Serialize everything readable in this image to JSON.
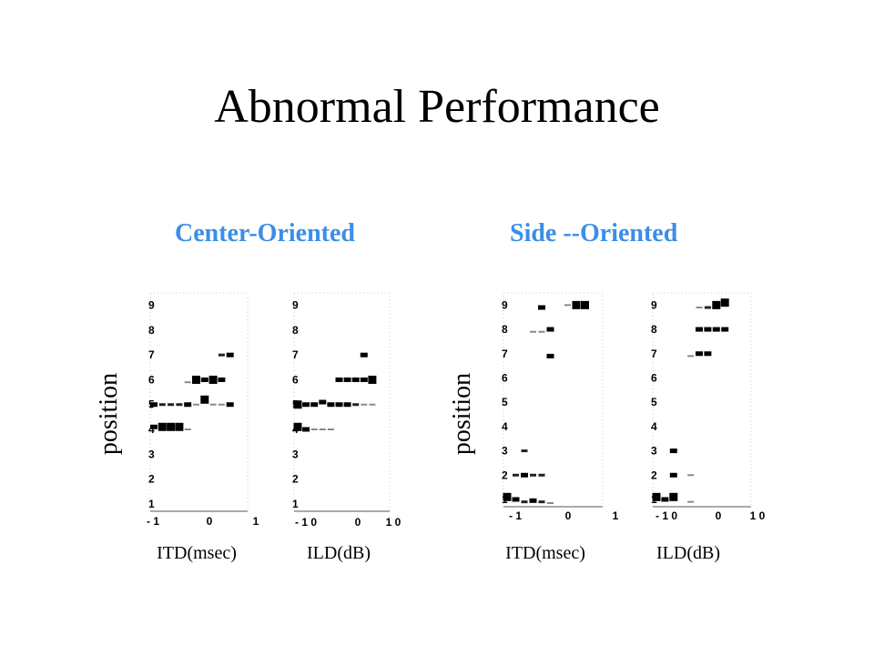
{
  "slide": {
    "title": "Abnormal Performance"
  },
  "groups": [
    {
      "title": "Center-Oriented",
      "ylabel": "position",
      "color": "#3b8ee8"
    },
    {
      "title": "Side --Oriented",
      "ylabel": "position",
      "color": "#3b8ee8"
    }
  ],
  "captions": [
    "ITD(msec)",
    "ILD(dB)",
    "ITD(msec)",
    "ILD(dB)"
  ],
  "chart_data": [
    {
      "type": "scatter",
      "group": "Center-Oriented",
      "xlabel": "ITD(msec)",
      "ylabel": "position",
      "xlim": [
        -1,
        1
      ],
      "ylim": [
        0.7,
        9.5
      ],
      "xticks": [
        "- 1",
        "0",
        "1"
      ],
      "yticks": [
        "1",
        "2",
        "3",
        "4",
        "5",
        "6",
        "7",
        "8",
        "9"
      ],
      "series": [
        {
          "values": [
            {
              "x": -1.0,
              "y": 4.1,
              "w": 0.5
            },
            {
              "x": -0.8,
              "y": 4.1,
              "w": 1.0
            },
            {
              "x": -0.6,
              "y": 4.1,
              "w": 1.0
            },
            {
              "x": -0.4,
              "y": 4.1,
              "w": 0.9
            },
            {
              "x": -0.2,
              "y": 4.0,
              "w": 0.2
            },
            {
              "x": -1.0,
              "y": 5.0,
              "w": 0.5
            },
            {
              "x": -0.8,
              "y": 5.0,
              "w": 0.3
            },
            {
              "x": -0.6,
              "y": 5.0,
              "w": 0.3
            },
            {
              "x": -0.4,
              "y": 5.0,
              "w": 0.3
            },
            {
              "x": -0.2,
              "y": 5.0,
              "w": 0.6
            },
            {
              "x": 0.0,
              "y": 5.0,
              "w": 0.2
            },
            {
              "x": 0.2,
              "y": 5.2,
              "w": 0.9
            },
            {
              "x": 0.4,
              "y": 5.0,
              "w": 0.2
            },
            {
              "x": 0.6,
              "y": 5.0,
              "w": 0.2
            },
            {
              "x": 0.8,
              "y": 5.0,
              "w": 0.5
            },
            {
              "x": -0.2,
              "y": 5.9,
              "w": 0.2
            },
            {
              "x": 0.0,
              "y": 6.0,
              "w": 0.8
            },
            {
              "x": 0.2,
              "y": 6.0,
              "w": 0.6
            },
            {
              "x": 0.4,
              "y": 6.0,
              "w": 0.9
            },
            {
              "x": 0.6,
              "y": 6.0,
              "w": 0.7
            },
            {
              "x": 0.6,
              "y": 7.0,
              "w": 0.3
            },
            {
              "x": 0.8,
              "y": 7.0,
              "w": 0.7
            }
          ]
        }
      ]
    },
    {
      "type": "scatter",
      "group": "Center-Oriented",
      "xlabel": "ILD(dB)",
      "ylabel": "position",
      "xlim": [
        -10,
        10
      ],
      "ylim": [
        0.7,
        9.5
      ],
      "xticks": [
        "- 1 0",
        "0",
        "1 0"
      ],
      "yticks": [
        "1",
        "2",
        "3",
        "4",
        "5",
        "6",
        "7",
        "8",
        "9"
      ],
      "series": [
        {
          "values": [
            {
              "x": -10,
              "y": 4.1,
              "w": 0.9
            },
            {
              "x": -8,
              "y": 4.0,
              "w": 0.7
            },
            {
              "x": -6,
              "y": 4.0,
              "w": 0.2
            },
            {
              "x": -4,
              "y": 4.0,
              "w": 0.2
            },
            {
              "x": -2,
              "y": 4.0,
              "w": 0.2
            },
            {
              "x": -10,
              "y": 5.0,
              "w": 0.9
            },
            {
              "x": -8,
              "y": 5.0,
              "w": 0.5
            },
            {
              "x": -6,
              "y": 5.0,
              "w": 0.6
            },
            {
              "x": -4,
              "y": 5.1,
              "w": 0.7
            },
            {
              "x": -2,
              "y": 5.0,
              "w": 0.5
            },
            {
              "x": 0,
              "y": 5.0,
              "w": 0.6
            },
            {
              "x": 2,
              "y": 5.0,
              "w": 0.6
            },
            {
              "x": 4,
              "y": 5.0,
              "w": 0.3
            },
            {
              "x": 6,
              "y": 5.0,
              "w": 0.2
            },
            {
              "x": 8,
              "y": 5.0,
              "w": 0.2
            },
            {
              "x": 0,
              "y": 6.0,
              "w": 0.7
            },
            {
              "x": 2,
              "y": 6.0,
              "w": 0.7
            },
            {
              "x": 4,
              "y": 6.0,
              "w": 0.6
            },
            {
              "x": 6,
              "y": 6.0,
              "w": 0.5
            },
            {
              "x": 8,
              "y": 6.0,
              "w": 0.9
            },
            {
              "x": 6,
              "y": 7.0,
              "w": 0.6
            }
          ]
        }
      ]
    },
    {
      "type": "scatter",
      "group": "Side --Oriented",
      "xlabel": "ITD(msec)",
      "ylabel": "position",
      "xlim": [
        -1,
        1
      ],
      "ylim": [
        0.7,
        9.5
      ],
      "xticks": [
        "- 1",
        "0",
        "1"
      ],
      "yticks": [
        "1",
        "2",
        "3",
        "4",
        "5",
        "6",
        "7",
        "8",
        "9"
      ],
      "series": [
        {
          "values": [
            {
              "x": -1.0,
              "y": 1.1,
              "w": 1.0
            },
            {
              "x": -0.8,
              "y": 1.0,
              "w": 0.6
            },
            {
              "x": -0.6,
              "y": 0.9,
              "w": 0.4
            },
            {
              "x": -0.4,
              "y": 0.95,
              "w": 0.6
            },
            {
              "x": -0.2,
              "y": 0.9,
              "w": 0.3
            },
            {
              "x": 0.0,
              "y": 0.85,
              "w": 0.2
            },
            {
              "x": -0.8,
              "y": 2.0,
              "w": 0.3
            },
            {
              "x": -0.6,
              "y": 2.0,
              "w": 0.6
            },
            {
              "x": -0.4,
              "y": 2.0,
              "w": 0.3
            },
            {
              "x": -0.2,
              "y": 2.0,
              "w": 0.3
            },
            {
              "x": -0.6,
              "y": 3.0,
              "w": 0.4
            },
            {
              "x": 0.0,
              "y": 6.9,
              "w": 0.6
            },
            {
              "x": -0.4,
              "y": 7.9,
              "w": 0.2
            },
            {
              "x": -0.2,
              "y": 7.9,
              "w": 0.2
            },
            {
              "x": 0.0,
              "y": 8.0,
              "w": 0.7
            },
            {
              "x": -0.2,
              "y": 8.9,
              "w": 0.6
            },
            {
              "x": 0.4,
              "y": 9.0,
              "w": 0.2
            },
            {
              "x": 0.6,
              "y": 9.0,
              "w": 1.0
            },
            {
              "x": 0.8,
              "y": 9.0,
              "w": 1.0
            }
          ]
        }
      ]
    },
    {
      "type": "scatter",
      "group": "Side --Oriented",
      "xlabel": "ILD(dB)",
      "ylabel": "position",
      "xlim": [
        -10,
        10
      ],
      "ylim": [
        0.7,
        9.5
      ],
      "xticks": [
        "- 1 0",
        "0",
        "1 0"
      ],
      "yticks": [
        "1",
        "2",
        "3",
        "4",
        "5",
        "6",
        "7",
        "8",
        "9"
      ],
      "series": [
        {
          "values": [
            {
              "x": -10,
              "y": 1.1,
              "w": 0.9
            },
            {
              "x": -8,
              "y": 1.0,
              "w": 0.7
            },
            {
              "x": -6,
              "y": 1.1,
              "w": 0.9
            },
            {
              "x": -2,
              "y": 0.9,
              "w": 0.2
            },
            {
              "x": -6,
              "y": 2.0,
              "w": 0.5
            },
            {
              "x": -2,
              "y": 2.0,
              "w": 0.2
            },
            {
              "x": -6,
              "y": 3.0,
              "w": 0.5
            },
            {
              "x": -2,
              "y": 6.9,
              "w": 0.1
            },
            {
              "x": 0,
              "y": 7.0,
              "w": 0.5
            },
            {
              "x": 2,
              "y": 7.0,
              "w": 0.5
            },
            {
              "x": 0,
              "y": 8.0,
              "w": 0.5
            },
            {
              "x": 2,
              "y": 8.0,
              "w": 0.5
            },
            {
              "x": 4,
              "y": 8.0,
              "w": 0.5
            },
            {
              "x": 6,
              "y": 8.0,
              "w": 0.5
            },
            {
              "x": 0,
              "y": 8.9,
              "w": 0.2
            },
            {
              "x": 2,
              "y": 8.9,
              "w": 0.3
            },
            {
              "x": 4,
              "y": 9.0,
              "w": 0.8
            },
            {
              "x": 6,
              "y": 9.1,
              "w": 0.9
            }
          ]
        }
      ]
    }
  ]
}
